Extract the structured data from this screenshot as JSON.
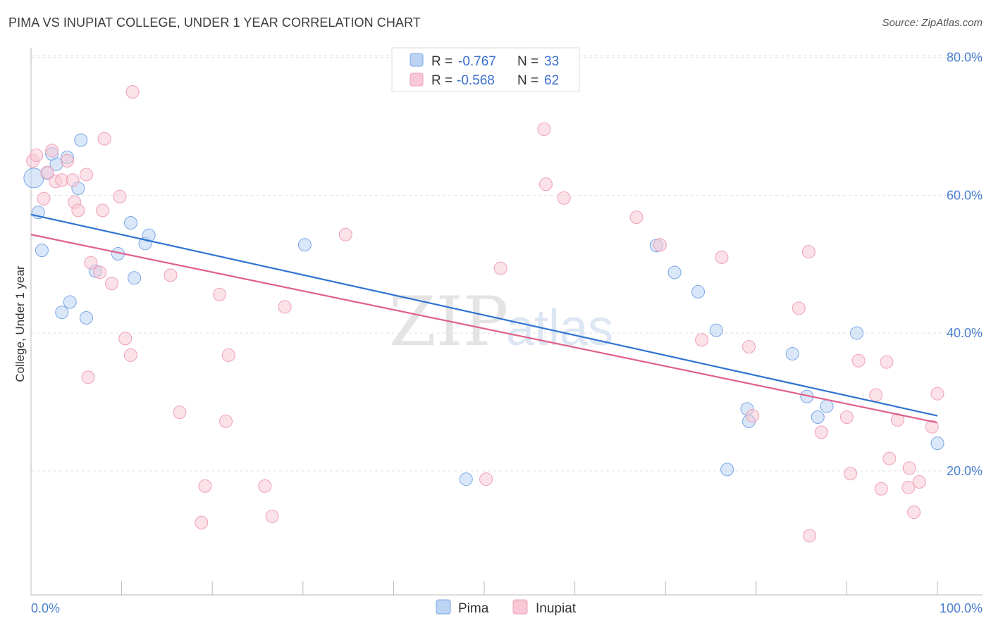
{
  "title": "PIMA VS INUPIAT COLLEGE, UNDER 1 YEAR CORRELATION CHART",
  "source": "Source: ZipAtlas.com",
  "chart_data": {
    "type": "scatter",
    "title": "PIMA VS INUPIAT COLLEGE, UNDER 1 YEAR CORRELATION CHART",
    "xlabel": "",
    "ylabel": "College, Under 1 year",
    "xlim": [
      0,
      100
    ],
    "ylim": [
      2,
      82
    ],
    "x_tick_labels": [
      "0.0%",
      "100.0%"
    ],
    "y_ticks": [
      20,
      40,
      60,
      80
    ],
    "y_tick_labels": [
      "20.0%",
      "40.0%",
      "60.0%",
      "80.0%"
    ],
    "grid": true,
    "legend": [
      {
        "name": "Pima",
        "r_label": "R =",
        "r_value": "-0.767",
        "n_label": "N =",
        "n_value": "33"
      },
      {
        "name": "Inupiat",
        "r_label": "R =",
        "r_value": "-0.568",
        "n_label": "N =",
        "n_value": "62"
      }
    ],
    "watermark": {
      "zip": "ZIP",
      "atlas": "atlas"
    },
    "series": [
      {
        "name": "Pima",
        "color": "#7aa7e6",
        "fill": "#bcd3f3",
        "line_color": "#2f74d0",
        "trend": {
          "x": [
            0,
            100
          ],
          "y": [
            57.2,
            28.0
          ]
        },
        "points": [
          {
            "x": 0.3,
            "y": 62.5
          },
          {
            "x": 0.8,
            "y": 57.5
          },
          {
            "x": 1.2,
            "y": 52.0
          },
          {
            "x": 2.3,
            "y": 66.0
          },
          {
            "x": 1.8,
            "y": 63.2
          },
          {
            "x": 2.8,
            "y": 64.5
          },
          {
            "x": 4.0,
            "y": 65.5
          },
          {
            "x": 5.5,
            "y": 68.0
          },
          {
            "x": 5.2,
            "y": 61.0
          },
          {
            "x": 3.4,
            "y": 43.0
          },
          {
            "x": 4.3,
            "y": 44.5
          },
          {
            "x": 6.1,
            "y": 42.2
          },
          {
            "x": 7.1,
            "y": 49.0
          },
          {
            "x": 9.6,
            "y": 51.5
          },
          {
            "x": 11.0,
            "y": 56.0
          },
          {
            "x": 11.4,
            "y": 48.0
          },
          {
            "x": 12.6,
            "y": 53.0
          },
          {
            "x": 13.0,
            "y": 54.2
          },
          {
            "x": 30.2,
            "y": 52.8
          },
          {
            "x": 48.0,
            "y": 18.8
          },
          {
            "x": 69.0,
            "y": 52.7
          },
          {
            "x": 71.0,
            "y": 48.8
          },
          {
            "x": 73.6,
            "y": 46.0
          },
          {
            "x": 75.6,
            "y": 40.4
          },
          {
            "x": 76.8,
            "y": 20.2
          },
          {
            "x": 79.0,
            "y": 29.0
          },
          {
            "x": 79.2,
            "y": 27.2
          },
          {
            "x": 84.0,
            "y": 37.0
          },
          {
            "x": 85.6,
            "y": 30.8
          },
          {
            "x": 86.8,
            "y": 27.8
          },
          {
            "x": 87.8,
            "y": 29.4
          },
          {
            "x": 91.1,
            "y": 40.0
          },
          {
            "x": 100.0,
            "y": 24.0
          }
        ]
      },
      {
        "name": "Inupiat",
        "color": "#f0a0b8",
        "fill": "#f8c8d6",
        "line_color": "#e0608a",
        "trend": {
          "x": [
            0,
            100
          ],
          "y": [
            54.3,
            27.0
          ]
        },
        "points": [
          {
            "x": 0.2,
            "y": 65.0
          },
          {
            "x": 0.6,
            "y": 65.8
          },
          {
            "x": 1.4,
            "y": 59.5
          },
          {
            "x": 1.8,
            "y": 63.3
          },
          {
            "x": 2.3,
            "y": 66.5
          },
          {
            "x": 2.7,
            "y": 62.0
          },
          {
            "x": 3.4,
            "y": 62.2
          },
          {
            "x": 4.0,
            "y": 65.0
          },
          {
            "x": 4.6,
            "y": 62.2
          },
          {
            "x": 4.8,
            "y": 59.0
          },
          {
            "x": 5.2,
            "y": 57.8
          },
          {
            "x": 6.1,
            "y": 63.0
          },
          {
            "x": 6.6,
            "y": 50.2
          },
          {
            "x": 7.6,
            "y": 48.8
          },
          {
            "x": 7.9,
            "y": 57.8
          },
          {
            "x": 8.1,
            "y": 68.2
          },
          {
            "x": 8.9,
            "y": 47.2
          },
          {
            "x": 9.8,
            "y": 59.8
          },
          {
            "x": 10.4,
            "y": 39.2
          },
          {
            "x": 11.0,
            "y": 36.8
          },
          {
            "x": 11.2,
            "y": 75.0
          },
          {
            "x": 6.3,
            "y": 33.6
          },
          {
            "x": 15.4,
            "y": 48.4
          },
          {
            "x": 16.4,
            "y": 28.5
          },
          {
            "x": 19.2,
            "y": 17.8
          },
          {
            "x": 18.8,
            "y": 12.5
          },
          {
            "x": 20.8,
            "y": 45.6
          },
          {
            "x": 21.5,
            "y": 27.2
          },
          {
            "x": 21.8,
            "y": 36.8
          },
          {
            "x": 25.8,
            "y": 17.8
          },
          {
            "x": 26.6,
            "y": 13.4
          },
          {
            "x": 28.0,
            "y": 43.8
          },
          {
            "x": 34.7,
            "y": 54.3
          },
          {
            "x": 50.2,
            "y": 18.8
          },
          {
            "x": 51.8,
            "y": 49.4
          },
          {
            "x": 56.6,
            "y": 69.6
          },
          {
            "x": 56.8,
            "y": 61.6
          },
          {
            "x": 58.8,
            "y": 59.6
          },
          {
            "x": 66.8,
            "y": 56.8
          },
          {
            "x": 69.4,
            "y": 52.8
          },
          {
            "x": 74.0,
            "y": 39.0
          },
          {
            "x": 76.2,
            "y": 51.0
          },
          {
            "x": 79.2,
            "y": 38.0
          },
          {
            "x": 79.6,
            "y": 28.0
          },
          {
            "x": 84.7,
            "y": 43.6
          },
          {
            "x": 85.8,
            "y": 51.8
          },
          {
            "x": 85.9,
            "y": 10.6
          },
          {
            "x": 87.2,
            "y": 25.6
          },
          {
            "x": 90.0,
            "y": 27.8
          },
          {
            "x": 90.4,
            "y": 19.6
          },
          {
            "x": 91.3,
            "y": 36.0
          },
          {
            "x": 93.2,
            "y": 31.0
          },
          {
            "x": 93.8,
            "y": 17.4
          },
          {
            "x": 94.4,
            "y": 35.8
          },
          {
            "x": 94.7,
            "y": 21.8
          },
          {
            "x": 95.6,
            "y": 27.4
          },
          {
            "x": 96.8,
            "y": 17.6
          },
          {
            "x": 96.9,
            "y": 20.4
          },
          {
            "x": 97.4,
            "y": 14.0
          },
          {
            "x": 98.0,
            "y": 18.4
          },
          {
            "x": 99.4,
            "y": 26.4
          },
          {
            "x": 100.0,
            "y": 31.2
          }
        ]
      }
    ]
  }
}
